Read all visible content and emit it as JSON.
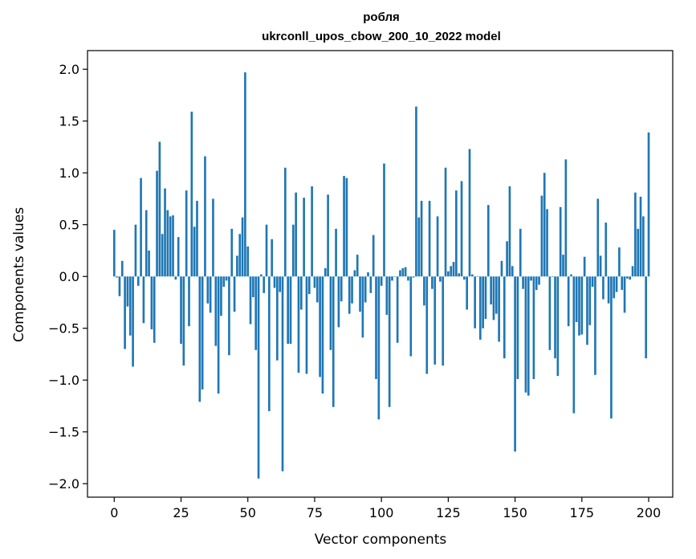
{
  "chart_data": {
    "type": "bar",
    "title": "робля",
    "subtitle": "ukrconll_upos_cbow_200_10_2022 model",
    "xlabel": "Vector components",
    "ylabel": "Components values",
    "xlim": [
      -10,
      209
    ],
    "ylim": [
      -2.13,
      2.18
    ],
    "xticks": [
      0,
      25,
      50,
      75,
      100,
      125,
      150,
      175,
      200
    ],
    "xtick_labels": [
      "0",
      "25",
      "50",
      "75",
      "100",
      "125",
      "150",
      "175",
      "200"
    ],
    "yticks": [
      2.0,
      1.5,
      1.0,
      0.5,
      0.0,
      -0.5,
      -1.0,
      -1.5,
      -2.0
    ],
    "ytick_labels": [
      "2.0",
      "1.5",
      "1.0",
      "0.5",
      "0.0",
      "−0.5",
      "−1.0",
      "−1.5",
      "−2.0"
    ],
    "bar_color": "#1f77b4",
    "grid": false,
    "x_start": 0,
    "values": [
      0.45,
      -0.01,
      -0.19,
      0.15,
      -0.7,
      -0.29,
      -0.57,
      -0.87,
      0.5,
      -0.09,
      0.95,
      -0.45,
      0.64,
      0.25,
      -0.51,
      -0.64,
      1.02,
      1.3,
      0.41,
      0.85,
      0.64,
      0.58,
      0.59,
      -0.03,
      0.38,
      -0.65,
      -0.86,
      0.83,
      -0.48,
      1.59,
      0.48,
      0.73,
      -1.21,
      -1.09,
      1.16,
      -0.26,
      -0.35,
      0.75,
      -0.67,
      -1.13,
      -0.38,
      -0.1,
      -0.04,
      -0.76,
      0.46,
      -0.34,
      0.2,
      0.41,
      0.57,
      1.97,
      0.29,
      -0.46,
      -0.2,
      -0.71,
      -1.95,
      0.02,
      -0.16,
      0.5,
      -1.3,
      0.36,
      -0.11,
      -0.81,
      -0.15,
      -1.88,
      1.05,
      -0.65,
      -0.65,
      0.5,
      0.81,
      -0.93,
      -0.32,
      0.76,
      -0.94,
      -0.17,
      0.87,
      -0.11,
      -0.25,
      -0.97,
      -1.13,
      0.08,
      0.79,
      -0.71,
      -1.26,
      0.46,
      -0.49,
      -0.24,
      0.97,
      0.95,
      -0.36,
      -0.26,
      0.06,
      0.21,
      -0.34,
      -0.59,
      -0.25,
      0.04,
      -0.16,
      0.4,
      -0.99,
      -1.38,
      -0.09,
      1.09,
      -0.37,
      -1.26,
      -0.04,
      0.0,
      -0.64,
      0.06,
      0.08,
      0.09,
      -0.04,
      -0.77,
      -0.01,
      1.64,
      0.57,
      0.73,
      -0.28,
      -0.94,
      0.73,
      -0.12,
      -0.85,
      0.58,
      -0.05,
      -0.86,
      1.05,
      0.05,
      0.1,
      0.14,
      0.83,
      0.03,
      0.92,
      -0.03,
      -0.32,
      1.23,
      0.02,
      -0.5,
      0.0,
      -0.61,
      -0.5,
      -0.41,
      0.69,
      -0.27,
      -0.42,
      -0.36,
      -0.63,
      0.15,
      -0.79,
      0.34,
      0.87,
      0.1,
      -1.69,
      -0.99,
      0.46,
      -0.12,
      -1.12,
      -1.15,
      -0.04,
      -0.99,
      -0.13,
      -0.08,
      0.78,
      1.0,
      0.65,
      -0.71,
      0.0,
      -0.79,
      -0.96,
      0.67,
      0.21,
      1.13,
      -0.48,
      0.02,
      -1.32,
      -0.44,
      -0.57,
      -0.56,
      0.19,
      -0.66,
      -0.47,
      -0.1,
      -0.95,
      0.75,
      0.2,
      -0.22,
      0.52,
      -0.26,
      -1.37,
      -0.21,
      -0.15,
      0.28,
      -0.13,
      -0.35,
      -0.02,
      -0.03,
      0.1,
      0.81,
      0.46,
      0.77,
      0.58,
      -0.79,
      1.39
    ]
  }
}
